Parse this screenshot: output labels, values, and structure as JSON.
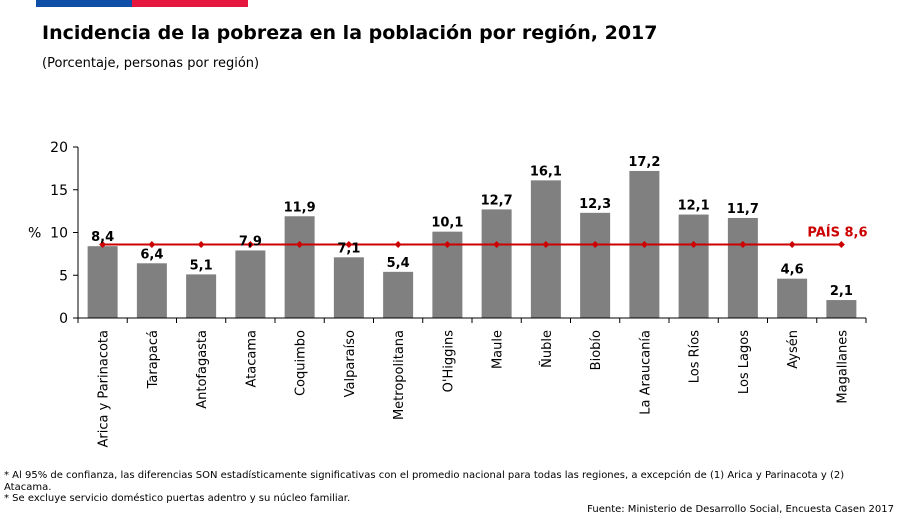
{
  "header": {
    "title": "Incidencia de la pobreza en la población por región, 2017",
    "subtitle": "(Porcentaje, personas por región)"
  },
  "chart_data": {
    "type": "bar",
    "ylabel": "%",
    "ylim": [
      0,
      20
    ],
    "yticks": [
      0,
      5,
      10,
      15,
      20
    ],
    "grid": false,
    "bar_color": "#808080",
    "categories": [
      "Arica y Parinacota",
      "Tarapacá",
      "Antofagasta",
      "Atacama",
      "Coquimbo",
      "Valparaíso",
      "Metropolitana",
      "O'Higgins",
      "Maule",
      "Ñuble",
      "Biobío",
      "La Araucanía",
      "Los Ríos",
      "Los Lagos",
      "Aysén",
      "Magallanes"
    ],
    "values": [
      8.4,
      6.4,
      5.1,
      7.9,
      11.9,
      7.1,
      5.4,
      10.1,
      12.7,
      16.1,
      12.3,
      17.2,
      12.1,
      11.7,
      4.6,
      2.1
    ],
    "value_labels": [
      "8,4",
      "6,4",
      "5,1",
      "7,9",
      "11,9",
      "7,1",
      "5,4",
      "10,1",
      "12,7",
      "16,1",
      "12,3",
      "17,2",
      "12,1",
      "11,7",
      "4,6",
      "2,1"
    ],
    "reference_line": {
      "value": 8.6,
      "label": "PAÍS 8,6",
      "color": "#cc0000"
    }
  },
  "footnotes": {
    "note1": " * Al 95% de confianza, las diferencias SON estadísticamente significativas con el promedio nacional para todas las regiones, a excepción de (1) Arica y Parinacota y (2) Atacama.",
    "note2": "* Se excluye servicio doméstico puertas adentro y su núcleo familiar.",
    "source": "Fuente: Ministerio de Desarrollo Social, Encuesta Casen 2017"
  }
}
